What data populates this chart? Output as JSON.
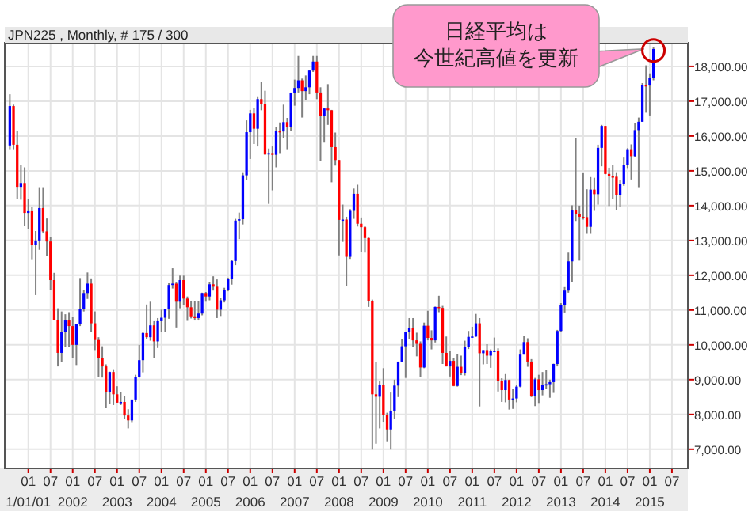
{
  "chart_data": {
    "type": "candlestick",
    "title": "JPN225 , Monthly, # 175 / 300",
    "annotations": [
      "日経平均は",
      "今世紀高値を更新"
    ],
    "xlim": [
      "2000-06-20",
      "2015-11-10"
    ],
    "ylim": [
      6450,
      18680
    ],
    "grid": true,
    "xticks": [
      {
        "value": "2001-01",
        "label": "01\n1/01/01"
      },
      {
        "value": "2001-07",
        "label": "07"
      },
      {
        "value": "2002-01",
        "label": "01\n2002"
      },
      {
        "value": "2002-07",
        "label": "07"
      },
      {
        "value": "2003-01",
        "label": "01\n2003"
      },
      {
        "value": "2003-07",
        "label": "07"
      },
      {
        "value": "2004-01",
        "label": "01\n2004"
      },
      {
        "value": "2004-07",
        "label": "07"
      },
      {
        "value": "2005-01",
        "label": "01\n2005"
      },
      {
        "value": "2005-07",
        "label": "07"
      },
      {
        "value": "2006-01",
        "label": "01\n2006"
      },
      {
        "value": "2006-07",
        "label": "07"
      },
      {
        "value": "2007-01",
        "label": "01\n2007"
      },
      {
        "value": "2007-07",
        "label": "07"
      },
      {
        "value": "2008-01",
        "label": "01\n2008"
      },
      {
        "value": "2008-07",
        "label": "07"
      },
      {
        "value": "2009-01",
        "label": "01\n2009"
      },
      {
        "value": "2009-07",
        "label": "07"
      },
      {
        "value": "2010-01",
        "label": "01\n2010"
      },
      {
        "value": "2010-07",
        "label": "07"
      },
      {
        "value": "2011-01",
        "label": "01\n2011"
      },
      {
        "value": "2011-07",
        "label": "07"
      },
      {
        "value": "2012-01",
        "label": "01\n2012"
      },
      {
        "value": "2012-07",
        "label": "07"
      },
      {
        "value": "2013-01",
        "label": "01\n2013"
      },
      {
        "value": "2013-07",
        "label": "07"
      },
      {
        "value": "2014-01",
        "label": "01\n2014"
      },
      {
        "value": "2014-07",
        "label": "07"
      },
      {
        "value": "2015-01",
        "label": "01\n2015"
      },
      {
        "value": "2015-07",
        "label": "07"
      }
    ],
    "yticks": [
      {
        "value": 7000,
        "label": "7,000.00"
      },
      {
        "value": 8000,
        "label": "8,000.00"
      },
      {
        "value": 9000,
        "label": "9,000.00"
      },
      {
        "value": 10000,
        "label": "10,000.00"
      },
      {
        "value": 11000,
        "label": "11,000.00"
      },
      {
        "value": 12000,
        "label": "12,000.00"
      },
      {
        "value": 13000,
        "label": "13,000.00"
      },
      {
        "value": 14000,
        "label": "14,000.00"
      },
      {
        "value": 15000,
        "label": "15,000.00"
      },
      {
        "value": 16000,
        "label": "16,000.00"
      },
      {
        "value": 17000,
        "label": "17,000.00"
      },
      {
        "value": 18000,
        "label": "18,000.00"
      }
    ],
    "x": [
      "2000-08",
      "2000-09",
      "2000-10",
      "2000-11",
      "2000-12",
      "2001-01",
      "2001-02",
      "2001-03",
      "2001-04",
      "2001-05",
      "2001-06",
      "2001-07",
      "2001-08",
      "2001-09",
      "2001-10",
      "2001-11",
      "2001-12",
      "2002-01",
      "2002-02",
      "2002-03",
      "2002-04",
      "2002-05",
      "2002-06",
      "2002-07",
      "2002-08",
      "2002-09",
      "2002-10",
      "2002-11",
      "2002-12",
      "2003-01",
      "2003-02",
      "2003-03",
      "2003-04",
      "2003-05",
      "2003-06",
      "2003-07",
      "2003-08",
      "2003-09",
      "2003-10",
      "2003-11",
      "2003-12",
      "2004-01",
      "2004-02",
      "2004-03",
      "2004-04",
      "2004-05",
      "2004-06",
      "2004-07",
      "2004-08",
      "2004-09",
      "2004-10",
      "2004-11",
      "2004-12",
      "2005-01",
      "2005-02",
      "2005-03",
      "2005-04",
      "2005-05",
      "2005-06",
      "2005-07",
      "2005-08",
      "2005-09",
      "2005-10",
      "2005-11",
      "2005-12",
      "2006-01",
      "2006-02",
      "2006-03",
      "2006-04",
      "2006-05",
      "2006-06",
      "2006-07",
      "2006-08",
      "2006-09",
      "2006-10",
      "2006-11",
      "2006-12",
      "2007-01",
      "2007-02",
      "2007-03",
      "2007-04",
      "2007-05",
      "2007-06",
      "2007-07",
      "2007-08",
      "2007-09",
      "2007-10",
      "2007-11",
      "2007-12",
      "2008-01",
      "2008-02",
      "2008-03",
      "2008-04",
      "2008-05",
      "2008-06",
      "2008-07",
      "2008-08",
      "2008-09",
      "2008-10",
      "2008-11",
      "2008-12",
      "2009-01",
      "2009-02",
      "2009-03",
      "2009-04",
      "2009-05",
      "2009-06",
      "2009-07",
      "2009-08",
      "2009-09",
      "2009-10",
      "2009-11",
      "2009-12",
      "2010-01",
      "2010-02",
      "2010-03",
      "2010-04",
      "2010-05",
      "2010-06",
      "2010-07",
      "2010-08",
      "2010-09",
      "2010-10",
      "2010-11",
      "2010-12",
      "2011-01",
      "2011-02",
      "2011-03",
      "2011-04",
      "2011-05",
      "2011-06",
      "2011-07",
      "2011-08",
      "2011-09",
      "2011-10",
      "2011-11",
      "2011-12",
      "2012-01",
      "2012-02",
      "2012-03",
      "2012-04",
      "2012-05",
      "2012-06",
      "2012-07",
      "2012-08",
      "2012-09",
      "2012-10",
      "2012-11",
      "2012-12",
      "2013-01",
      "2013-02",
      "2013-03",
      "2013-04",
      "2013-05",
      "2013-06",
      "2013-07",
      "2013-08",
      "2013-09",
      "2013-10",
      "2013-11",
      "2013-12",
      "2014-01",
      "2014-02",
      "2014-03",
      "2014-04",
      "2014-05",
      "2014-06",
      "2014-07",
      "2014-08",
      "2014-09",
      "2014-10",
      "2014-11",
      "2014-12",
      "2015-01",
      "2015-02"
    ],
    "ohlc": [
      [
        15730,
        17200,
        15620,
        16860
      ],
      [
        16860,
        16900,
        15620,
        15750
      ],
      [
        15750,
        16150,
        14200,
        14540
      ],
      [
        14540,
        15180,
        14170,
        14650
      ],
      [
        14650,
        15100,
        13420,
        13790
      ],
      [
        13790,
        14190,
        13320,
        13840
      ],
      [
        13840,
        13960,
        12460,
        12880
      ],
      [
        12880,
        13270,
        11430,
        13000
      ],
      [
        13000,
        14530,
        12730,
        13930
      ],
      [
        13930,
        14530,
        13200,
        13260
      ],
      [
        13260,
        13630,
        12560,
        12970
      ],
      [
        12970,
        13100,
        11580,
        11860
      ],
      [
        11860,
        12070,
        10710,
        10710
      ],
      [
        10710,
        11050,
        9380,
        9770
      ],
      [
        9770,
        10960,
        9500,
        10370
      ],
      [
        10370,
        10880,
        9940,
        10700
      ],
      [
        10700,
        10940,
        9930,
        10540
      ],
      [
        10540,
        10810,
        9630,
        10000
      ],
      [
        10000,
        10600,
        9420,
        10590
      ],
      [
        10590,
        11920,
        10540,
        11020
      ],
      [
        11020,
        11570,
        10960,
        11490
      ],
      [
        11490,
        12080,
        11320,
        11760
      ],
      [
        11760,
        11910,
        10360,
        10620
      ],
      [
        10620,
        10960,
        9850,
        10140
      ],
      [
        10140,
        10220,
        9080,
        9620
      ],
      [
        9620,
        9960,
        9060,
        9380
      ],
      [
        9380,
        9440,
        8200,
        8640
      ],
      [
        8640,
        9230,
        8300,
        9220
      ],
      [
        9220,
        9300,
        8270,
        8580
      ],
      [
        8580,
        8810,
        8340,
        8340
      ],
      [
        8340,
        8640,
        8270,
        8360
      ],
      [
        8360,
        8520,
        7860,
        7970
      ],
      [
        7970,
        8150,
        7600,
        7830
      ],
      [
        7830,
        8430,
        7780,
        8430
      ],
      [
        8430,
        9140,
        8360,
        9080
      ],
      [
        9080,
        10000,
        9060,
        9560
      ],
      [
        9560,
        10370,
        9210,
        10340
      ],
      [
        10340,
        11160,
        10160,
        10220
      ],
      [
        10220,
        11240,
        10120,
        10560
      ],
      [
        10560,
        10680,
        9610,
        10100
      ],
      [
        10100,
        10770,
        9910,
        10680
      ],
      [
        10680,
        11010,
        10370,
        10780
      ],
      [
        10780,
        11040,
        10360,
        11040
      ],
      [
        11040,
        11770,
        10750,
        11720
      ],
      [
        11720,
        12200,
        11620,
        11760
      ],
      [
        11760,
        11800,
        10500,
        11240
      ],
      [
        11240,
        11990,
        11050,
        11860
      ],
      [
        11860,
        11990,
        11150,
        11330
      ],
      [
        11330,
        11390,
        10690,
        11080
      ],
      [
        11080,
        11270,
        10760,
        10820
      ],
      [
        10820,
        11260,
        10700,
        10770
      ],
      [
        10770,
        11250,
        10700,
        10900
      ],
      [
        10900,
        11500,
        10850,
        11490
      ],
      [
        11490,
        11520,
        11240,
        11390
      ],
      [
        11390,
        11800,
        11280,
        11740
      ],
      [
        11740,
        11970,
        11560,
        11670
      ],
      [
        11670,
        11880,
        10770,
        11010
      ],
      [
        11010,
        11340,
        10830,
        11280
      ],
      [
        11280,
        11640,
        11220,
        11580
      ],
      [
        11580,
        11930,
        11540,
        11900
      ],
      [
        11900,
        12430,
        11730,
        12410
      ],
      [
        12410,
        13620,
        12290,
        13570
      ],
      [
        13570,
        13800,
        13040,
        13610
      ],
      [
        13610,
        14960,
        13460,
        14870
      ],
      [
        14870,
        16450,
        14740,
        16110
      ],
      [
        16110,
        16750,
        15340,
        16650
      ],
      [
        16650,
        16800,
        15770,
        16210
      ],
      [
        16210,
        17140,
        15700,
        17060
      ],
      [
        17060,
        17560,
        16740,
        16910
      ],
      [
        16910,
        17300,
        15460,
        15470
      ],
      [
        15470,
        15640,
        14050,
        15510
      ],
      [
        15510,
        15700,
        14440,
        15460
      ],
      [
        15460,
        16250,
        15100,
        16140
      ],
      [
        16140,
        16390,
        15510,
        16130
      ],
      [
        16130,
        16900,
        15950,
        16400
      ],
      [
        16400,
        16520,
        15620,
        16270
      ],
      [
        16270,
        17250,
        16150,
        17230
      ],
      [
        17230,
        17620,
        16870,
        17380
      ],
      [
        17380,
        18300,
        17250,
        17600
      ],
      [
        17600,
        17650,
        16530,
        17290
      ],
      [
        17290,
        17740,
        17030,
        17400
      ],
      [
        17400,
        17890,
        17200,
        17880
      ],
      [
        17880,
        18300,
        17840,
        18140
      ],
      [
        18140,
        18300,
        17060,
        17250
      ],
      [
        17250,
        17400,
        15270,
        16570
      ],
      [
        16570,
        16800,
        15810,
        16790
      ],
      [
        16790,
        17490,
        16320,
        16740
      ],
      [
        16740,
        16750,
        14670,
        15680
      ],
      [
        15680,
        16100,
        15150,
        15310
      ],
      [
        15310,
        15310,
        12570,
        13590
      ],
      [
        13590,
        14030,
        12960,
        13600
      ],
      [
        13600,
        13680,
        11690,
        12530
      ],
      [
        12530,
        13900,
        12470,
        13850
      ],
      [
        13850,
        14490,
        13620,
        14340
      ],
      [
        14340,
        14600,
        13400,
        13480
      ],
      [
        13480,
        13660,
        12670,
        13380
      ],
      [
        13380,
        13420,
        12650,
        13070
      ],
      [
        13070,
        13080,
        11090,
        11260
      ],
      [
        11260,
        11300,
        6990,
        8580
      ],
      [
        8580,
        9500,
        7160,
        8510
      ],
      [
        8510,
        8950,
        7600,
        8860
      ],
      [
        8860,
        9330,
        7790,
        7990
      ],
      [
        7990,
        8050,
        7230,
        7570
      ],
      [
        7570,
        8630,
        6990,
        8110
      ],
      [
        8110,
        9000,
        7880,
        8830
      ],
      [
        8830,
        9520,
        8500,
        9520
      ],
      [
        9520,
        10170,
        9500,
        9960
      ],
      [
        9960,
        10360,
        9050,
        10360
      ],
      [
        10360,
        10770,
        10170,
        10490
      ],
      [
        10490,
        10770,
        9940,
        10130
      ],
      [
        10130,
        10350,
        9670,
        10030
      ],
      [
        10030,
        10100,
        9080,
        9350
      ],
      [
        9350,
        10640,
        9330,
        10550
      ],
      [
        10550,
        10980,
        10130,
        10200
      ],
      [
        10200,
        10420,
        9870,
        10130
      ],
      [
        10130,
        11100,
        10070,
        11090
      ],
      [
        11090,
        11410,
        10940,
        11060
      ],
      [
        11060,
        11120,
        9450,
        9770
      ],
      [
        9770,
        10240,
        9380,
        9380
      ],
      [
        9380,
        9830,
        9090,
        9540
      ],
      [
        9540,
        9620,
        8810,
        8820
      ],
      [
        8820,
        9730,
        8800,
        9370
      ],
      [
        9370,
        9690,
        9130,
        9200
      ],
      [
        9200,
        10120,
        9120,
        9940
      ],
      [
        9940,
        10400,
        9880,
        10230
      ],
      [
        10230,
        10520,
        10220,
        10240
      ],
      [
        10240,
        10890,
        10230,
        10620
      ],
      [
        10620,
        10770,
        8230,
        9760
      ],
      [
        9760,
        9850,
        9440,
        9850
      ],
      [
        9850,
        10020,
        9450,
        9690
      ],
      [
        9690,
        9870,
        9340,
        9820
      ],
      [
        9820,
        10210,
        9790,
        9830
      ],
      [
        9830,
        9900,
        8660,
        8960
      ],
      [
        8960,
        9040,
        8360,
        8700
      ],
      [
        8700,
        9160,
        8350,
        8990
      ],
      [
        8990,
        9000,
        8140,
        8430
      ],
      [
        8430,
        8740,
        8160,
        8460
      ],
      [
        8460,
        8860,
        8350,
        8800
      ],
      [
        8800,
        9870,
        8780,
        9720
      ],
      [
        9720,
        10250,
        9720,
        10080
      ],
      [
        10080,
        10190,
        9370,
        9520
      ],
      [
        9520,
        9590,
        8500,
        8540
      ],
      [
        8540,
        9050,
        8240,
        9010
      ],
      [
        9010,
        9140,
        8330,
        8700
      ],
      [
        8700,
        9220,
        8550,
        8840
      ],
      [
        8840,
        9290,
        8730,
        8870
      ],
      [
        8870,
        9000,
        8480,
        8930
      ],
      [
        8930,
        9460,
        8620,
        9450
      ],
      [
        9450,
        10430,
        9380,
        10400
      ],
      [
        10400,
        11200,
        10370,
        11140
      ],
      [
        11140,
        11660,
        10930,
        11560
      ],
      [
        11560,
        12650,
        11500,
        12400
      ],
      [
        12400,
        14010,
        11800,
        13860
      ],
      [
        13860,
        15940,
        13560,
        13770
      ],
      [
        13770,
        14000,
        12420,
        13680
      ],
      [
        13680,
        14950,
        13600,
        13670
      ],
      [
        13670,
        14470,
        13190,
        13390
      ],
      [
        13390,
        14820,
        13190,
        14460
      ],
      [
        14460,
        14800,
        13850,
        14330
      ],
      [
        14330,
        15750,
        14030,
        15660
      ],
      [
        15660,
        16320,
        15130,
        16290
      ],
      [
        16290,
        16290,
        14900,
        14910
      ],
      [
        14910,
        15090,
        13990,
        14840
      ],
      [
        14840,
        15170,
        14200,
        14830
      ],
      [
        14830,
        14960,
        13880,
        14300
      ],
      [
        14300,
        14730,
        13960,
        14630
      ],
      [
        14630,
        15380,
        14570,
        15160
      ],
      [
        15160,
        15650,
        15080,
        15620
      ],
      [
        15620,
        15760,
        14750,
        15420
      ],
      [
        15420,
        16380,
        15390,
        16170
      ],
      [
        16170,
        16530,
        14530,
        16410
      ],
      [
        16410,
        17520,
        16410,
        17460
      ],
      [
        17460,
        18030,
        16670,
        17450
      ],
      [
        17450,
        17800,
        16590,
        17670
      ],
      [
        17670,
        18550,
        17600,
        18500
      ]
    ]
  }
}
